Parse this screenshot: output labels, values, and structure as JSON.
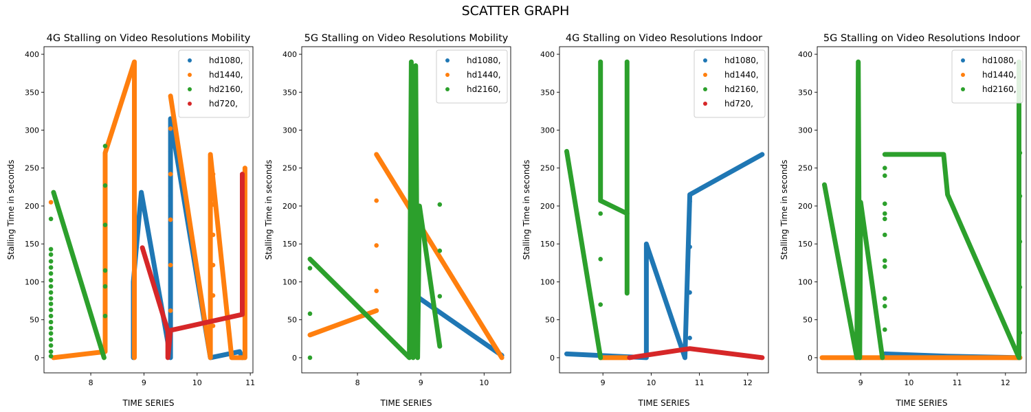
{
  "figure": {
    "suptitle": "SCATTER GRAPH"
  },
  "colors": {
    "hd1080,": "#1f77b4",
    "hd1440,": "#ff7f0e",
    "hd2160,": "#2ca02c",
    "hd720,": "#d62728"
  },
  "chart_data": [
    {
      "type": "scatter",
      "title": "4G Stalling on Video Resolutions Mobility",
      "xlabel": "TIME SERIES",
      "ylabel": "Stalling Time in seconds",
      "xlim": [
        7.12,
        11.05
      ],
      "ylim": [
        -20,
        410
      ],
      "xticks": [
        8,
        9,
        10,
        11
      ],
      "yticks": [
        0,
        50,
        100,
        150,
        200,
        250,
        300,
        350,
        400
      ],
      "legend_position": "top-right",
      "series": [
        {
          "name": "hd1080,",
          "segments": [
            [
              [
                8.8,
                0
              ],
              [
                8.8,
                100
              ],
              [
                8.95,
                218
              ],
              [
                9.5,
                0
              ],
              [
                9.5,
                315
              ],
              [
                10.25,
                0
              ],
              [
                10.8,
                8
              ],
              [
                10.85,
                0
              ]
            ]
          ],
          "points": [
            [
              9.5,
              272
            ],
            [
              9.5,
              213
            ],
            [
              9.5,
              155
            ],
            [
              9.5,
              96
            ]
          ]
        },
        {
          "name": "hd1440,",
          "segments": [
            [
              [
                7.3,
                0
              ],
              [
                8.27,
                8
              ],
              [
                8.27,
                270
              ],
              [
                8.82,
                390
              ],
              [
                8.82,
                0
              ]
            ],
            [
              [
                9.5,
                345
              ],
              [
                10.25,
                0
              ],
              [
                10.25,
                268
              ],
              [
                10.65,
                0
              ],
              [
                10.9,
                0
              ],
              [
                10.9,
                250
              ]
            ]
          ],
          "points": [
            [
              7.25,
              205
            ],
            [
              8.27,
              168
            ],
            [
              8.27,
              108
            ],
            [
              8.27,
              48
            ],
            [
              9.5,
              302
            ],
            [
              9.5,
              242
            ],
            [
              9.5,
              182
            ],
            [
              9.5,
              122
            ],
            [
              9.5,
              62
            ],
            [
              10.3,
              242
            ],
            [
              10.3,
              202
            ],
            [
              10.3,
              162
            ],
            [
              10.3,
              122
            ],
            [
              10.3,
              82
            ],
            [
              10.3,
              42
            ]
          ]
        },
        {
          "name": "hd2160,",
          "segments": [
            [
              [
                7.3,
                218
              ],
              [
                8.25,
                0
              ]
            ]
          ],
          "points": [
            [
              7.25,
              183
            ],
            [
              7.25,
              143
            ],
            [
              7.25,
              136
            ],
            [
              7.25,
              127
            ],
            [
              7.25,
              119
            ],
            [
              7.25,
              111
            ],
            [
              7.25,
              102
            ],
            [
              7.25,
              94
            ],
            [
              7.25,
              86
            ],
            [
              7.25,
              78
            ],
            [
              7.25,
              71
            ],
            [
              7.25,
              63
            ],
            [
              7.25,
              55
            ],
            [
              7.25,
              47
            ],
            [
              7.25,
              39
            ],
            [
              7.25,
              32
            ],
            [
              7.25,
              24
            ],
            [
              7.25,
              16
            ],
            [
              7.25,
              8
            ],
            [
              7.25,
              2
            ],
            [
              8.27,
              279
            ],
            [
              8.27,
              227
            ],
            [
              8.27,
              175
            ],
            [
              8.27,
              115
            ],
            [
              8.27,
              94
            ],
            [
              8.27,
              55
            ]
          ]
        },
        {
          "name": "hd720,",
          "segments": [
            [
              [
                8.97,
                145
              ],
              [
                9.45,
                35
              ],
              [
                9.45,
                0
              ],
              [
                9.5,
                36
              ],
              [
                10.85,
                57
              ],
              [
                10.85,
                242
              ]
            ]
          ],
          "points": []
        }
      ]
    },
    {
      "type": "scatter",
      "title": "5G Stalling on Video Resolutions Mobility",
      "xlabel": "TIME SERIES",
      "ylabel": "Stalling Time in seconds",
      "xlim": [
        7.12,
        10.42
      ],
      "ylim": [
        -20,
        410
      ],
      "xticks": [
        8,
        9,
        10
      ],
      "yticks": [
        0,
        50,
        100,
        150,
        200,
        250,
        300,
        350,
        400
      ],
      "legend_position": "top-right",
      "series": [
        {
          "name": "hd1080,",
          "segments": [
            [
              [
                8.95,
                80
              ],
              [
                10.28,
                3
              ]
            ]
          ],
          "points": []
        },
        {
          "name": "hd1440,",
          "segments": [
            [
              [
                7.25,
                30
              ],
              [
                8.3,
                62
              ]
            ],
            [
              [
                8.3,
                268
              ],
              [
                10.28,
                0
              ]
            ]
          ],
          "points": [
            [
              8.3,
              207
            ],
            [
              8.3,
              148
            ],
            [
              8.3,
              88
            ]
          ]
        },
        {
          "name": "hd2160,",
          "segments": [
            [
              [
                7.25,
                130
              ],
              [
                8.82,
                0
              ],
              [
                8.85,
                390
              ],
              [
                8.88,
                0
              ],
              [
                8.92,
                385
              ],
              [
                8.95,
                0
              ],
              [
                8.98,
                200
              ],
              [
                9.3,
                15
              ]
            ]
          ],
          "points": [
            [
              7.25,
              118
            ],
            [
              7.25,
              58
            ],
            [
              7.25,
              0
            ],
            [
              9.3,
              202
            ],
            [
              9.3,
              141
            ],
            [
              9.3,
              81
            ]
          ]
        }
      ]
    },
    {
      "type": "scatter",
      "title": "4G Stalling on Video Resolutions Indoor",
      "xlabel": "TIME SERIES",
      "ylabel": "Stalling Time in seconds",
      "xlim": [
        8.1,
        12.43
      ],
      "ylim": [
        -20,
        410
      ],
      "xticks": [
        9,
        10,
        11,
        12
      ],
      "yticks": [
        0,
        50,
        100,
        150,
        200,
        250,
        300,
        350,
        400
      ],
      "legend_position": "top-right",
      "series": [
        {
          "name": "hd1080,",
          "segments": [
            [
              [
                8.25,
                5
              ],
              [
                9.9,
                0
              ],
              [
                9.9,
                150
              ],
              [
                10.7,
                0
              ],
              [
                10.8,
                215
              ],
              [
                12.3,
                268
              ]
            ]
          ],
          "points": [
            [
              10.8,
              206
            ],
            [
              10.8,
              146
            ],
            [
              10.8,
              86
            ],
            [
              10.8,
              26
            ]
          ]
        },
        {
          "name": "hd1440,",
          "segments": [
            [
              [
                8.95,
                0
              ],
              [
                9.5,
                0
              ]
            ]
          ],
          "points": []
        },
        {
          "name": "hd2160,",
          "segments": [
            [
              [
                8.25,
                272
              ],
              [
                8.95,
                0
              ]
            ],
            [
              [
                8.95,
                390
              ],
              [
                8.95,
                207
              ],
              [
                9.5,
                190
              ]
            ],
            [
              [
                9.5,
                390
              ],
              [
                9.5,
                85
              ]
            ]
          ],
          "points": [
            [
              8.95,
              190
            ],
            [
              8.95,
              130
            ],
            [
              8.95,
              70
            ]
          ]
        },
        {
          "name": "hd720,",
          "segments": [
            [
              [
                9.55,
                0
              ],
              [
                10.8,
                12
              ],
              [
                12.3,
                0
              ]
            ]
          ],
          "points": []
        }
      ]
    },
    {
      "type": "scatter",
      "title": "5G Stalling on Video Resolutions Indoor",
      "xlabel": "TIME SERIES",
      "ylabel": "Stalling Time in seconds",
      "xlim": [
        8.1,
        12.43
      ],
      "ylim": [
        -20,
        410
      ],
      "xticks": [
        9,
        10,
        11,
        12
      ],
      "yticks": [
        0,
        50,
        100,
        150,
        200,
        250,
        300,
        350,
        400
      ],
      "legend_position": "top-right",
      "series": [
        {
          "name": "hd1080,",
          "segments": [
            [
              [
                9.5,
                5
              ],
              [
                10.8,
                2
              ],
              [
                12.3,
                0
              ]
            ]
          ],
          "points": []
        },
        {
          "name": "hd1440,",
          "segments": [
            [
              [
                8.2,
                0
              ],
              [
                12.3,
                0
              ]
            ]
          ],
          "points": []
        },
        {
          "name": "hd2160,",
          "segments": [
            [
              [
                8.25,
                228
              ],
              [
                8.92,
                0
              ],
              [
                8.95,
                390
              ],
              [
                8.98,
                0
              ],
              [
                9.0,
                205
              ],
              [
                9.45,
                0
              ]
            ],
            [
              [
                9.5,
                268
              ],
              [
                10.72,
                268
              ],
              [
                10.8,
                215
              ],
              [
                12.28,
                0
              ],
              [
                12.28,
                390
              ]
            ]
          ],
          "points": [
            [
              9.5,
              250
            ],
            [
              9.5,
              240
            ],
            [
              9.5,
              203
            ],
            [
              9.5,
              190
            ],
            [
              9.5,
              183
            ],
            [
              9.5,
              162
            ],
            [
              9.5,
              128
            ],
            [
              9.5,
              120
            ],
            [
              9.5,
              78
            ],
            [
              9.5,
              68
            ],
            [
              9.5,
              37
            ],
            [
              12.3,
              270
            ],
            [
              12.3,
              213
            ],
            [
              12.3,
              153
            ],
            [
              12.3,
              93
            ],
            [
              12.3,
              33
            ]
          ]
        }
      ]
    }
  ]
}
